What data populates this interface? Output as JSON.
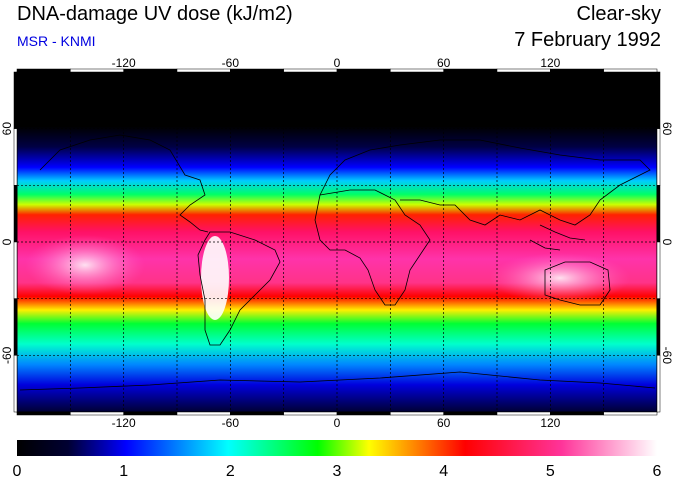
{
  "header": {
    "title": "DNA-damage UV dose (kJ/m2)",
    "subtitle": "MSR - KNMI",
    "condition": "Clear-sky",
    "date": "7 February 1992"
  },
  "colors": {
    "title_text": "#000000",
    "subtitle_text": "#0000e0",
    "coast": "#000000",
    "grid": "#000000",
    "scale_stops": [
      "#000000",
      "#000033",
      "#0000ff",
      "#00ffff",
      "#00ff00",
      "#ffff00",
      "#ff0000",
      "#ff3399",
      "#ffffff"
    ]
  },
  "map": {
    "projection": "equirectangular",
    "lon_range": [
      -180,
      180
    ],
    "lat_range": [
      -90,
      90
    ],
    "lon_ticks": [
      "-120",
      "-60",
      "0",
      "60",
      "120"
    ],
    "lat_ticks": [
      "60",
      "0",
      "-60"
    ],
    "lon_tick_values": [
      -120,
      -60,
      0,
      60,
      120
    ],
    "lat_tick_values": [
      60,
      0,
      -60
    ],
    "grid_lon_step": 30,
    "grid_lat_step": 30,
    "grid_style": "dashed"
  },
  "colorbar": {
    "min": 0,
    "max": 6,
    "tick_labels": [
      "0",
      "1",
      "2",
      "3",
      "4",
      "5",
      "6"
    ]
  }
}
